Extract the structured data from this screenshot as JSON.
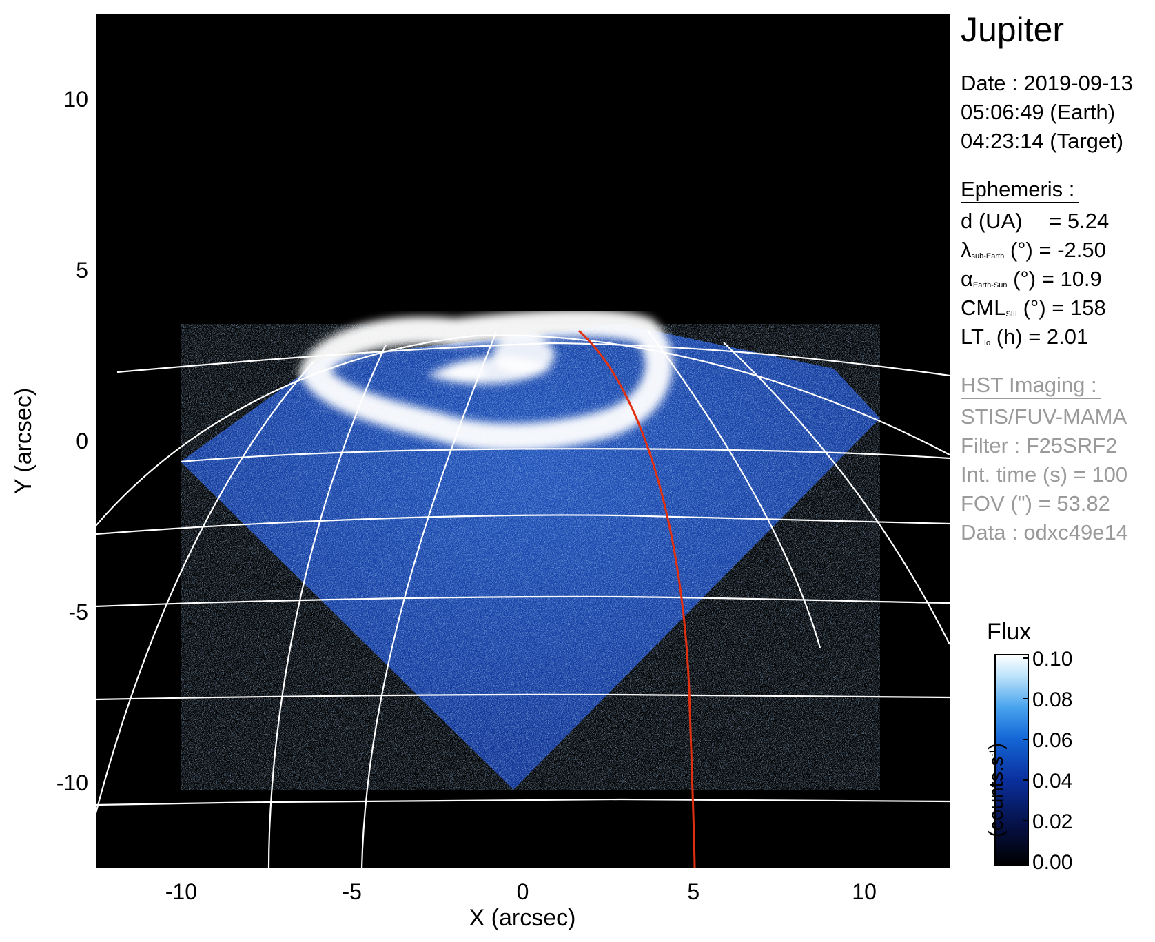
{
  "chart_data": {
    "type": "heatmap",
    "xlabel": "X (arcsec)",
    "ylabel": "Y (arcsec)",
    "xlim": [
      -12.5,
      12.5
    ],
    "ylim": [
      -12.5,
      12.5
    ],
    "xticks": [
      -10,
      -5,
      0,
      5,
      10
    ],
    "yticks": [
      10,
      5,
      0,
      -5,
      -10
    ],
    "background_color": "#000000",
    "grid_color": "#ffffff",
    "line_color": "#e03010",
    "colorbar": {
      "title": "Flux",
      "units": "(counts.s",
      "units_exp": "-1",
      "units_close": ")",
      "range": [
        0.0,
        0.1
      ],
      "ticks": [
        "0.10",
        "0.08",
        "0.06",
        "0.04",
        "0.02",
        "0.00"
      ],
      "colors": [
        "#000000",
        "#06124a",
        "#0a2f9c",
        "#1466d6",
        "#49a4ee",
        "#bfe4fb",
        "#ffffff"
      ]
    }
  },
  "info": {
    "title": "Jupiter",
    "date_line": "Date : 2019-09-13",
    "earth_time": "05:06:49 (Earth)",
    "target_time": "04:23:14 (Target)",
    "ephemeris_header": "Ephemeris :",
    "d_label": "d (UA)",
    "d_value": "= 5.24",
    "lambda_sym": "λ",
    "lambda_sub": "sub-Earth",
    "lambda_value": "(°) = -2.50",
    "alpha_sym": "α",
    "alpha_sub": "Earth-Sun",
    "alpha_value": "(°) = 10.9",
    "cml_sym": "CML",
    "cml_sub": "SIII",
    "cml_value": "(°) = 158",
    "lt_sym": "LT",
    "lt_sub": "Io",
    "lt_value": "(h) = 2.01",
    "hst_header": "HST Imaging :",
    "instrument": "STIS/FUV-MAMA",
    "filter": "Filter : F25SRF2",
    "int_time": "Int. time (s) = 100",
    "fov": "FOV (\") = 53.82",
    "data_id": "Data : odxc49e14"
  }
}
